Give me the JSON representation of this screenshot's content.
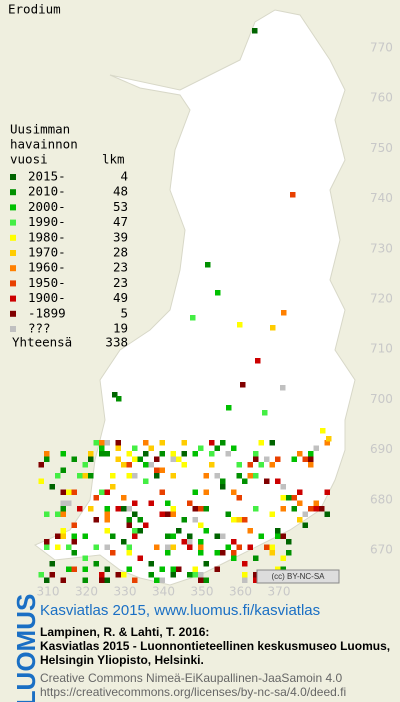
{
  "title": "Erodium",
  "legend": {
    "heading": [
      "Uusimman",
      "havainnon"
    ],
    "col_headers": [
      "vuosi",
      "lkm"
    ],
    "items": [
      {
        "label": "2015-",
        "count": 4,
        "color": "#006400"
      },
      {
        "label": "2010-",
        "count": 48,
        "color": "#009000"
      },
      {
        "label": "2000-",
        "count": 53,
        "color": "#00c000"
      },
      {
        "label": "1990-",
        "count": 47,
        "color": "#44ee44"
      },
      {
        "label": "1980-",
        "count": 39,
        "color": "#ffff00"
      },
      {
        "label": "1970-",
        "count": 28,
        "color": "#ffcc00"
      },
      {
        "label": "1960-",
        "count": 23,
        "color": "#ff8000"
      },
      {
        "label": "1950-",
        "count": 23,
        "color": "#e84000"
      },
      {
        "label": "1900-",
        "count": 49,
        "color": "#cc0000"
      },
      {
        "label": "-1899",
        "count": 5,
        "color": "#800000"
      },
      {
        "label": "???",
        "count": 19,
        "color": "#c0c0c0"
      }
    ],
    "total": {
      "label": "Yhteensä",
      "count": 338
    }
  },
  "x_axis": [
    310,
    320,
    330,
    340,
    350,
    360,
    370
  ],
  "y_axis": [
    770,
    760,
    750,
    740,
    730,
    720,
    710,
    700,
    690,
    680,
    670
  ],
  "license_badge": "(cc) BY-NC-SA",
  "footer": {
    "logo": "LUOMUS",
    "link": "Kasviatlas 2015, www.luomus.fi/kasviatlas",
    "citation": [
      "Lampinen, R. & Lahti, T. 2016:",
      "Kasviatlas 2015 - Luonnontieteellinen keskusmuseo Luomus,",
      "Helsingin Yliopisto, Helsinki."
    ],
    "license": [
      "Creative Commons Nimeä-EiKaupallinen-JaaSamoin 4.0",
      "https://creativecommons.org/licenses/by-nc-sa/4.0/deed.fi"
    ]
  }
}
